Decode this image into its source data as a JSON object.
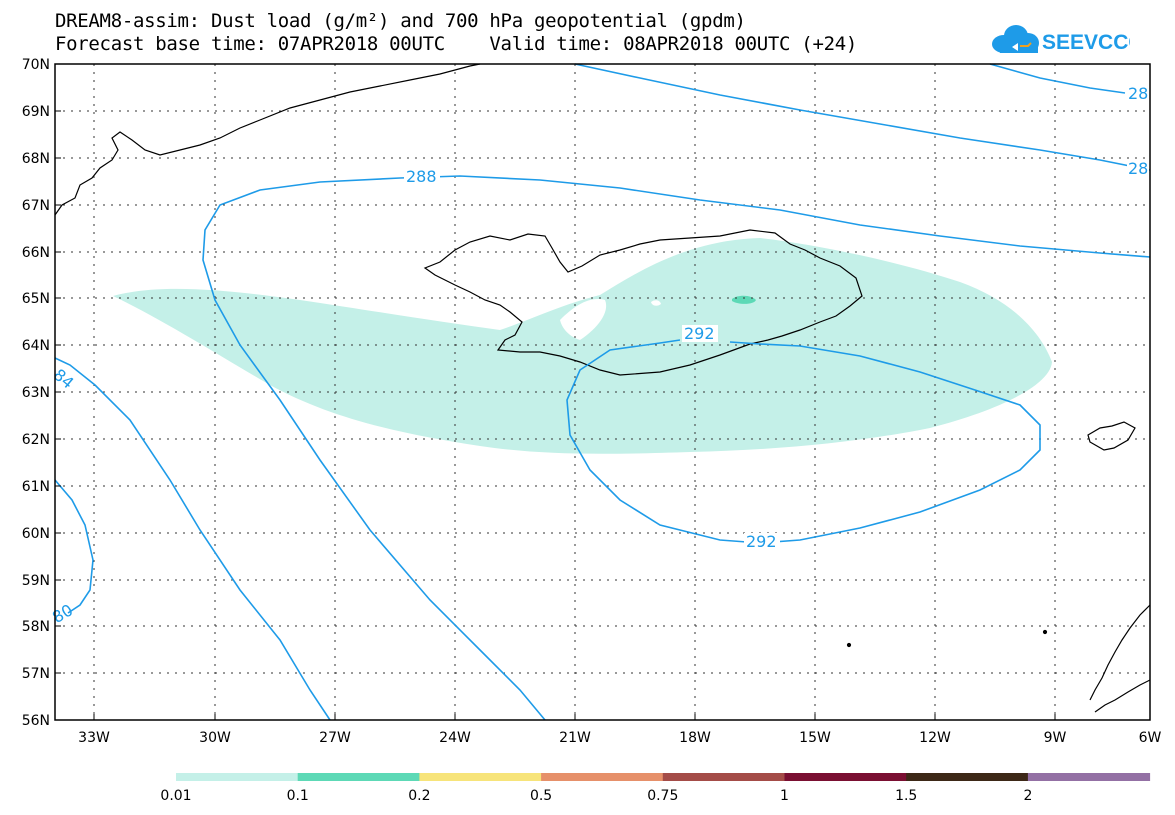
{
  "header": {
    "title_line1": "DREAM8-assim: Dust load (g/m²) and 700 hPa geopotential (gpdm)",
    "title_line2": "Forecast base time: 07APR2018 00UTC    Valid time: 08APR2018 00UTC (+24)"
  },
  "logo": {
    "text": "SEEVCCC",
    "icon": "cloud-icon",
    "color": "#1e9be8"
  },
  "map": {
    "lat_labels": [
      "70N",
      "69N",
      "68N",
      "67N",
      "66N",
      "65N",
      "64N",
      "63N",
      "62N",
      "61N",
      "60N",
      "59N",
      "58N",
      "57N",
      "56N"
    ],
    "lon_labels": [
      "33W",
      "30W",
      "27W",
      "24W",
      "21W",
      "18W",
      "15W",
      "12W",
      "9W",
      "6W"
    ],
    "contour_labels": [
      "288",
      "292",
      "292",
      "28",
      "28",
      "84",
      "80"
    ],
    "contour_color": "#1e9be8",
    "dust_colors": {
      "low": "#c4f0e8",
      "mid": "#5dd9b6"
    }
  },
  "colorbar": {
    "colors": [
      "#c4f0e8",
      "#5dd9b6",
      "#f7e47a",
      "#e6906a",
      "#a44c48",
      "#7a0f32",
      "#3d2817",
      "#9370a4"
    ],
    "labels": [
      "0.01",
      "0.1",
      "0.2",
      "0.5",
      "0.75",
      "1",
      "1.5",
      "2"
    ]
  }
}
